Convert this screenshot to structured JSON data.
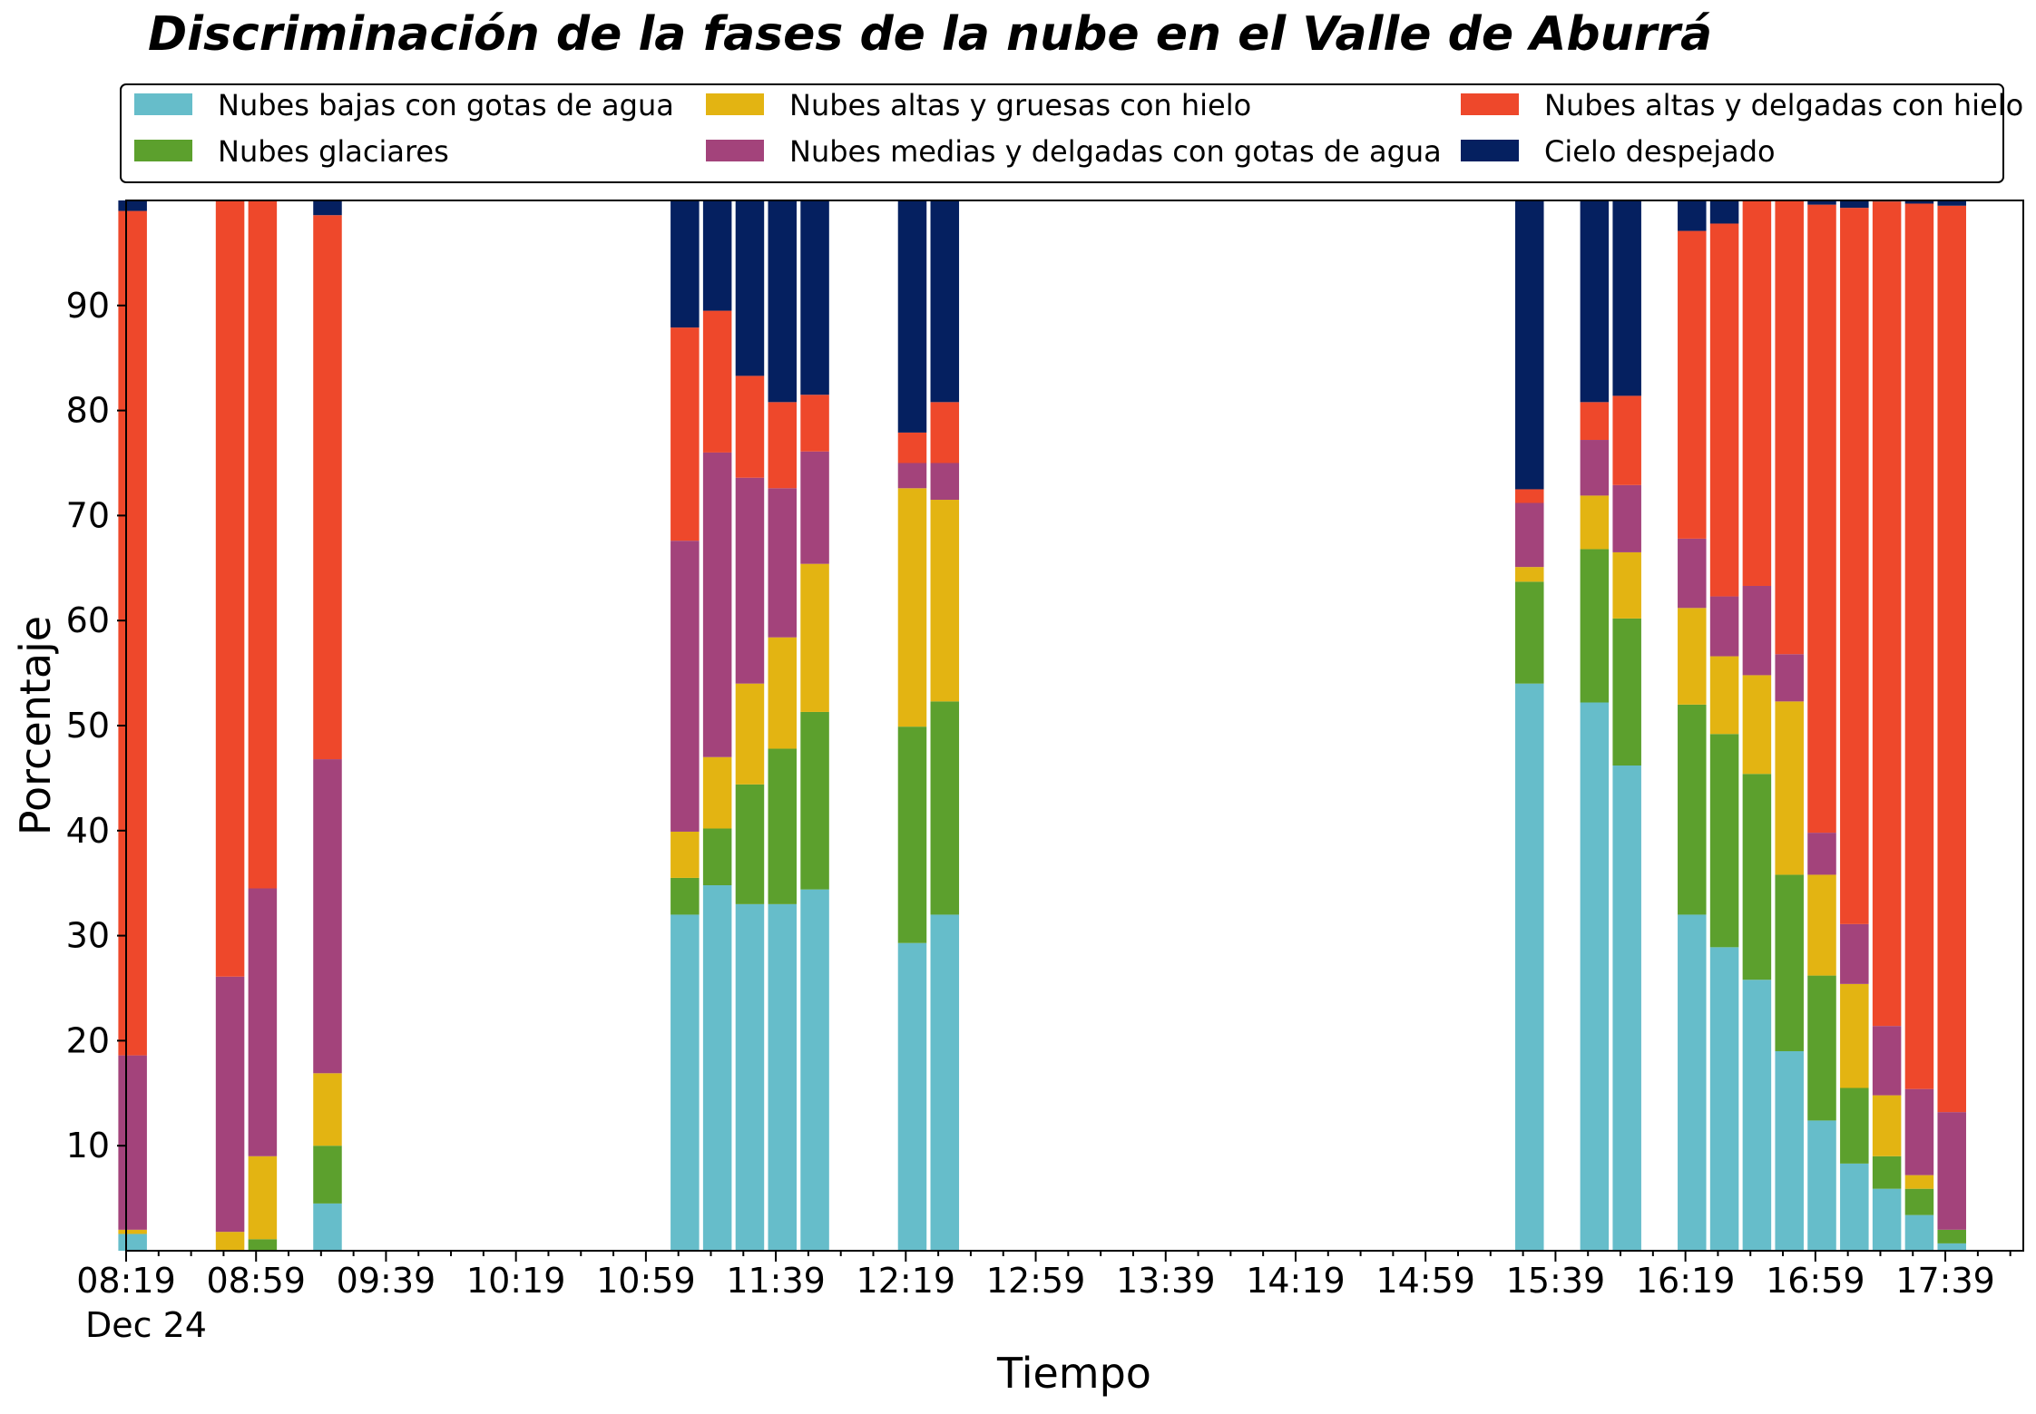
{
  "chart_data": {
    "type": "bar",
    "stacked": true,
    "title": "Discriminación de la fases de la nube en el Valle de Aburrá",
    "xlabel": "Tiempo",
    "ylabel": "Porcentaje",
    "date_label": "Dec 24",
    "ylim": [
      0,
      100
    ],
    "yticks": [
      10,
      20,
      30,
      40,
      50,
      60,
      70,
      80,
      90
    ],
    "xlim": [
      "08:19",
      "18:03"
    ],
    "xticks": [
      "08:19",
      "08:59",
      "09:39",
      "10:19",
      "10:59",
      "11:39",
      "12:19",
      "12:59",
      "13:39",
      "14:19",
      "14:59",
      "15:39",
      "16:19",
      "16:59",
      "17:39"
    ],
    "grid": false,
    "legend_position": "top",
    "x": [
      "08:21",
      "08:51",
      "09:01",
      "09:21",
      "11:11",
      "11:21",
      "11:31",
      "11:41",
      "11:51",
      "12:21",
      "12:31",
      "15:31",
      "15:51",
      "16:01",
      "16:21",
      "16:31",
      "16:41",
      "16:51",
      "17:01",
      "17:11",
      "17:21",
      "17:31",
      "17:41"
    ],
    "series": [
      {
        "name": "Nubes bajas con gotas de agua",
        "color": "#66bdca",
        "values": [
          1.6,
          0,
          0,
          4.5,
          32,
          34.8,
          33,
          33,
          34.4,
          29.3,
          32,
          54,
          52.2,
          46.2,
          32,
          28.9,
          25.8,
          19,
          12.4,
          8.3,
          5.9,
          3.4,
          0.7
        ]
      },
      {
        "name": "Nubes glaciares",
        "color": "#5ca02d",
        "values": [
          0,
          0,
          1.1,
          5.5,
          3.5,
          5.4,
          11.4,
          14.8,
          16.9,
          20.6,
          20.3,
          9.7,
          14.6,
          14,
          20,
          20.3,
          19.6,
          16.8,
          13.8,
          7.2,
          3.1,
          2.5,
          1.3
        ]
      },
      {
        "name": "Nubes altas y gruesas con hielo",
        "color": "#e3b412",
        "values": [
          0.4,
          1.8,
          7.9,
          6.9,
          4.4,
          6.8,
          9.6,
          10.6,
          14.1,
          22.7,
          19.2,
          1.4,
          5.1,
          6.3,
          9.2,
          7.4,
          9.4,
          16.5,
          9.6,
          9.9,
          5.8,
          1.3,
          0
        ]
      },
      {
        "name": "Nubes medias y delgadas con gotas de agua",
        "color": "#a3437b",
        "values": [
          16.6,
          24.3,
          25.5,
          29.9,
          27.7,
          29,
          19.6,
          14.2,
          10.7,
          2.4,
          3.5,
          6.1,
          5.3,
          6.4,
          6.6,
          5.7,
          8.5,
          4.5,
          4,
          5.7,
          6.6,
          8.2,
          11.2
        ]
      },
      {
        "name": "Nubes altas y delgadas con hielo",
        "color": "#ee482b",
        "values": [
          80.4,
          73.9,
          65.5,
          51.8,
          20.3,
          13.5,
          9.7,
          8.2,
          5.4,
          2.9,
          5.8,
          1.3,
          3.6,
          8.5,
          29.3,
          35.5,
          36.7,
          43.2,
          59.8,
          68.2,
          78.5,
          84.3,
          86.3
        ]
      },
      {
        "name": "Cielo despejado",
        "color": "#052060",
        "values": [
          1,
          0,
          0,
          1.4,
          12.1,
          10.5,
          16.7,
          19.2,
          18.5,
          22.1,
          19.2,
          27.5,
          19.2,
          18.6,
          2.9,
          2.2,
          0,
          0,
          0.4,
          0.7,
          0.1,
          0.3,
          0.5
        ]
      }
    ]
  }
}
